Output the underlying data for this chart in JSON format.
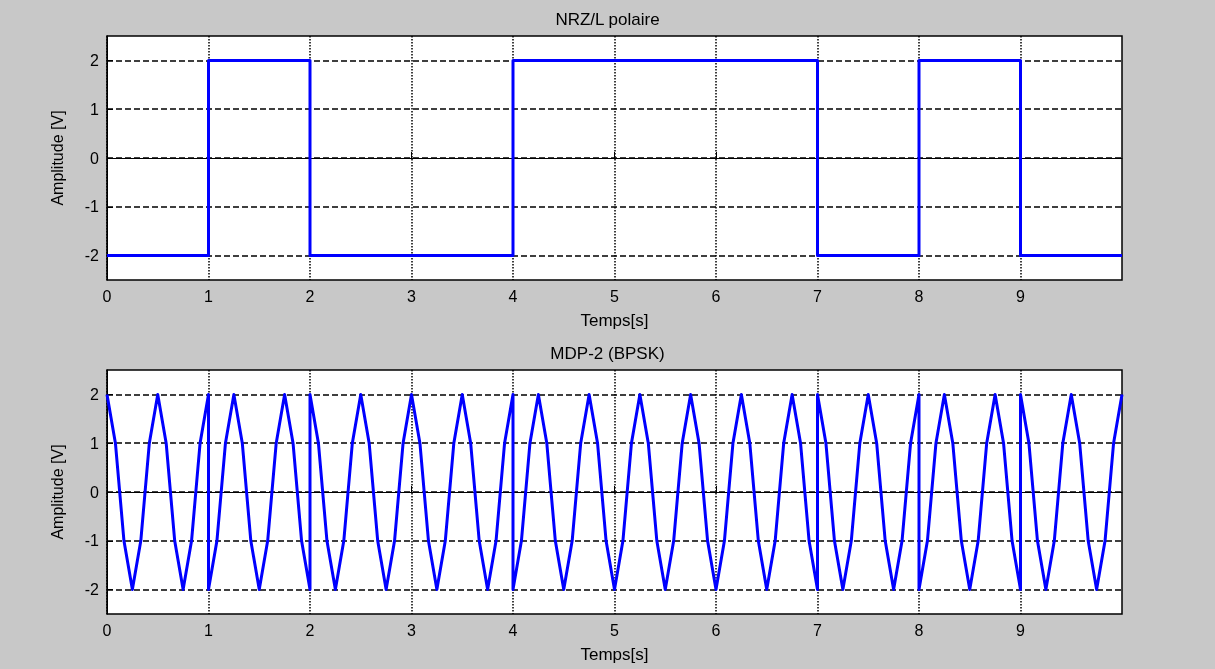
{
  "chart_data": [
    {
      "type": "step",
      "title": "NRZ/L polaire",
      "xlabel": "Temps[s]",
      "ylabel": "Amplitude [V]",
      "x": [
        0,
        1,
        2,
        4,
        7,
        8,
        9,
        10
      ],
      "series": [
        {
          "color": "#0000ff",
          "values": [
            -2,
            2,
            -2,
            2,
            -2,
            2,
            -2,
            -2
          ]
        }
      ],
      "xlim": [
        0,
        10
      ],
      "ylim": [
        -2.5,
        2.5
      ],
      "xticks": [
        0,
        1,
        2,
        3,
        4,
        5,
        6,
        7,
        8,
        9
      ],
      "yticks": [
        -2,
        -1,
        0,
        1,
        2
      ],
      "grid": true,
      "marker": "none",
      "line_style": "solid"
    },
    {
      "type": "line",
      "title": "MDP-2 (BPSK)",
      "xlabel": "Temps[s]",
      "ylabel": "Amplitude [V]",
      "x": [
        0,
        0.083,
        0.167,
        0.25,
        0.333,
        0.417,
        0.5,
        0.583,
        0.667,
        0.75,
        0.833,
        0.917,
        1,
        1,
        1.083,
        1.167,
        1.25,
        1.333,
        1.417,
        1.5,
        1.583,
        1.667,
        1.75,
        1.833,
        1.917,
        2,
        2,
        2.083,
        2.167,
        2.25,
        2.333,
        2.417,
        2.5,
        2.583,
        2.667,
        2.75,
        2.833,
        2.917,
        3,
        3.083,
        3.167,
        3.25,
        3.333,
        3.417,
        3.5,
        3.583,
        3.667,
        3.75,
        3.833,
        3.917,
        4,
        4,
        4.083,
        4.167,
        4.25,
        4.333,
        4.417,
        4.5,
        4.583,
        4.667,
        4.75,
        4.833,
        4.917,
        5,
        5.083,
        5.167,
        5.25,
        5.333,
        5.417,
        5.5,
        5.583,
        5.667,
        5.75,
        5.833,
        5.917,
        6,
        6.083,
        6.167,
        6.25,
        6.333,
        6.417,
        6.5,
        6.583,
        6.667,
        6.75,
        6.833,
        6.917,
        7,
        7,
        7.083,
        7.167,
        7.25,
        7.333,
        7.417,
        7.5,
        7.583,
        7.667,
        7.75,
        7.833,
        7.917,
        8,
        8,
        8.083,
        8.167,
        8.25,
        8.333,
        8.417,
        8.5,
        8.583,
        8.667,
        8.75,
        8.833,
        8.917,
        9,
        9,
        9.083,
        9.167,
        9.25,
        9.333,
        9.417,
        9.5,
        9.583,
        9.667,
        9.75,
        9.833,
        9.917,
        10
      ],
      "series": [
        {
          "color": "#0000ff",
          "values": [
            2,
            1,
            -1,
            -2,
            -1,
            1,
            2,
            1,
            -1,
            -2,
            -1,
            1,
            2,
            -2,
            -1,
            1,
            2,
            1,
            -1,
            -2,
            -1,
            1,
            2,
            1,
            -1,
            -2,
            2,
            1,
            -1,
            -2,
            -1,
            1,
            2,
            1,
            -1,
            -2,
            -1,
            1,
            2,
            1,
            -1,
            -2,
            -1,
            1,
            2,
            1,
            -1,
            -2,
            -1,
            1,
            2,
            -2,
            -1,
            1,
            2,
            1,
            -1,
            -2,
            -1,
            1,
            2,
            1,
            -1,
            -2,
            -1,
            1,
            2,
            1,
            -1,
            -2,
            -1,
            1,
            2,
            1,
            -1,
            -2,
            -1,
            1,
            2,
            1,
            -1,
            -2,
            -1,
            1,
            2,
            1,
            -1,
            -2,
            2,
            1,
            -1,
            -2,
            -1,
            1,
            2,
            1,
            -1,
            -2,
            -1,
            1,
            2,
            -2,
            -1,
            1,
            2,
            1,
            -1,
            -2,
            -1,
            1,
            2,
            1,
            -1,
            -2,
            2,
            1,
            -1,
            -2,
            -1,
            1,
            2,
            1,
            -1,
            -2,
            -1,
            1,
            2
          ]
        }
      ],
      "xlim": [
        0,
        10
      ],
      "ylim": [
        -2.5,
        2.5
      ],
      "xticks": [
        0,
        1,
        2,
        3,
        4,
        5,
        6,
        7,
        8,
        9
      ],
      "yticks": [
        -2,
        -1,
        0,
        1,
        2
      ],
      "grid": true,
      "marker": "none",
      "line_style": "solid"
    }
  ]
}
